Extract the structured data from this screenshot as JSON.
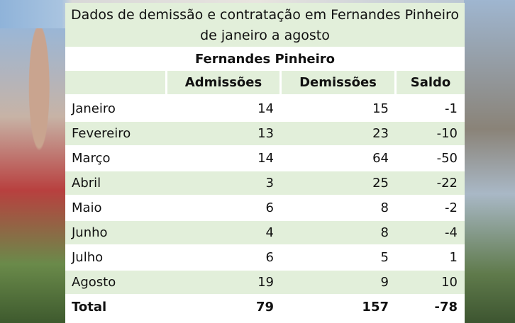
{
  "title": "Dados de demissão e contratação em Fernandes Pinheiro de janeiro a agosto",
  "subtitle": "Fernandes Pinheiro",
  "headers": [
    "",
    "Admissões",
    "Demissões",
    "Saldo"
  ],
  "rows": [
    {
      "month": "Janeiro",
      "admissoes": "14",
      "demissoes": "15",
      "saldo": "-1"
    },
    {
      "month": "Fevereiro",
      "admissoes": "13",
      "demissoes": "23",
      "saldo": "-10"
    },
    {
      "month": "Março",
      "admissoes": "14",
      "demissoes": "64",
      "saldo": "-50"
    },
    {
      "month": "Abril",
      "admissoes": "3",
      "demissoes": "25",
      "saldo": "-22"
    },
    {
      "month": "Maio",
      "admissoes": "6",
      "demissoes": "8",
      "saldo": "-2"
    },
    {
      "month": "Junho",
      "admissoes": "4",
      "demissoes": "8",
      "saldo": "-4"
    },
    {
      "month": "Julho",
      "admissoes": "6",
      "demissoes": "5",
      "saldo": "1"
    },
    {
      "month": "Agosto",
      "admissoes": "19",
      "demissoes": "9",
      "saldo": "10"
    }
  ],
  "total": {
    "month": "Total",
    "admissoes": "79",
    "demissoes": "157",
    "saldo": "-78"
  },
  "colors": {
    "band": "#e2efda",
    "background": "#ffffff"
  }
}
